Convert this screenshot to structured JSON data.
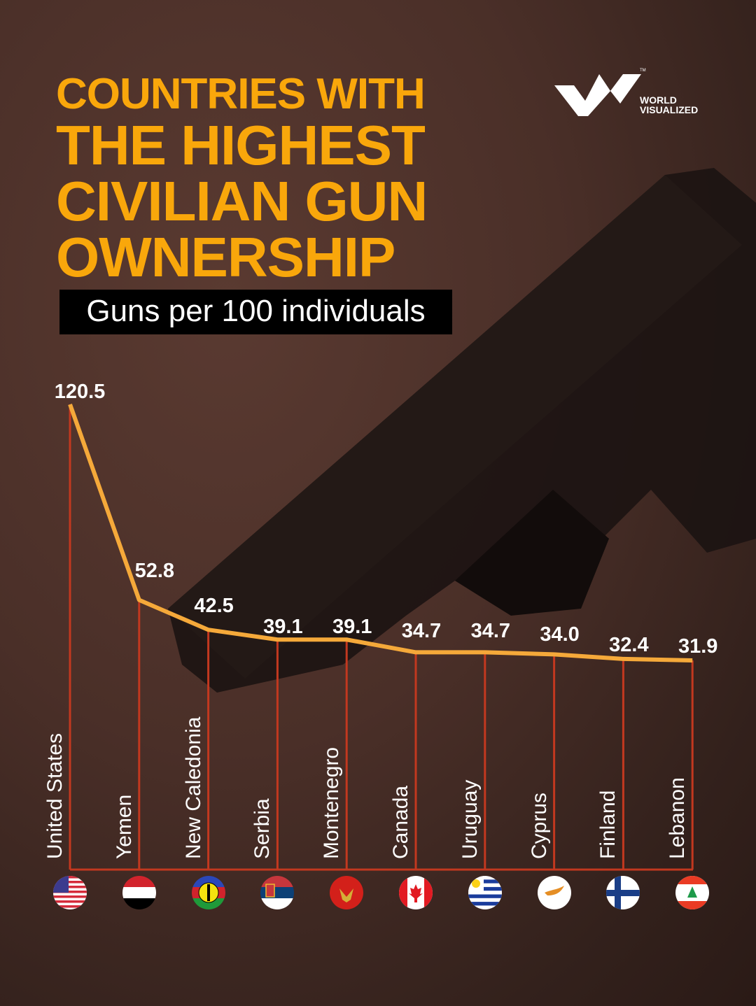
{
  "title": {
    "line1": "COUNTRIES WITH",
    "line2": "THE HIGHEST",
    "line3": "CIVILIAN GUN",
    "line4": "OWNERSHIP"
  },
  "subtitle": "Guns per 100 individuals",
  "brand": {
    "name_line1": "WORLD",
    "name_line2": "VISUALIZED",
    "trademark": "TM"
  },
  "colors": {
    "accent": "#f9a70b",
    "line": "#f5a93a",
    "stem": "#c2381f",
    "background": "#4a2f28"
  },
  "chart_data": {
    "type": "line",
    "title": "Countries with the Highest Civilian Gun Ownership",
    "subtitle": "Guns per 100 individuals",
    "xlabel": "",
    "ylabel": "Guns per 100 individuals",
    "categories": [
      "United States",
      "Yemen",
      "New Caledonia",
      "Serbia",
      "Montenegro",
      "Canada",
      "Uruguay",
      "Cyprus",
      "Finland",
      "Lebanon"
    ],
    "values": [
      120.5,
      52.8,
      42.5,
      39.1,
      39.1,
      34.7,
      34.7,
      34.0,
      32.4,
      31.9
    ],
    "labels": [
      "120.5",
      "52.8",
      "42.5",
      "39.1",
      "39.1",
      "34.7",
      "34.7",
      "34.0",
      "32.4",
      "31.9"
    ],
    "grid": false,
    "legend": "none"
  },
  "flags": [
    "us-flag",
    "yemen-flag",
    "new-caledonia-flag",
    "serbia-flag",
    "montenegro-flag",
    "canada-flag",
    "uruguay-flag",
    "cyprus-flag",
    "finland-flag",
    "lebanon-flag"
  ]
}
